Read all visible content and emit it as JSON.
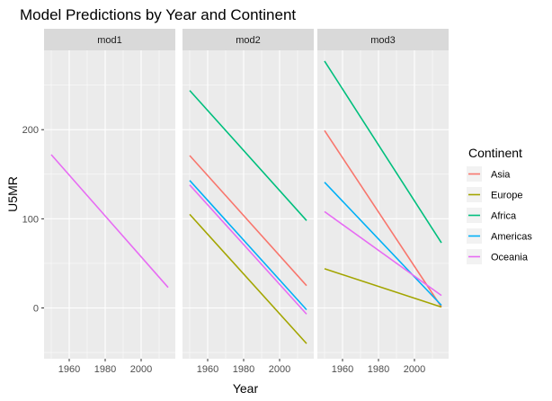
{
  "chart_data": {
    "type": "line",
    "title": "Model Predictions by Year and Continent",
    "xlabel": "Year",
    "ylabel": "U5MR",
    "xlim": [
      1946,
      2019
    ],
    "ylim": [
      -57,
      289
    ],
    "x_ticks": [
      1960,
      1980,
      2000
    ],
    "y_ticks": [
      0,
      100,
      200
    ],
    "legend": {
      "title": "Continent",
      "position": "right",
      "entries": [
        "Asia",
        "Europe",
        "Africa",
        "Americas",
        "Oceania"
      ]
    },
    "colors": {
      "Asia": "#F8766D",
      "Europe": "#A3A500",
      "Africa": "#00BF7D",
      "Americas": "#00B0F6",
      "Oceania": "#E76BF3"
    },
    "panels": [
      {
        "name": "mod1",
        "series": [
          {
            "name": "Oceania",
            "x": [
              1950,
              2015
            ],
            "y": [
              172,
              23
            ]
          }
        ]
      },
      {
        "name": "mod2",
        "series": [
          {
            "name": "Asia",
            "x": [
              1950,
              2015
            ],
            "y": [
              171,
              25
            ]
          },
          {
            "name": "Europe",
            "x": [
              1950,
              2015
            ],
            "y": [
              105,
              -40
            ]
          },
          {
            "name": "Africa",
            "x": [
              1950,
              2015
            ],
            "y": [
              244,
              98
            ]
          },
          {
            "name": "Americas",
            "x": [
              1950,
              2015
            ],
            "y": [
              143,
              -2
            ]
          },
          {
            "name": "Oceania",
            "x": [
              1950,
              2015
            ],
            "y": [
              138,
              -7
            ]
          }
        ]
      },
      {
        "name": "mod3",
        "series": [
          {
            "name": "Asia",
            "x": [
              1950,
              2015
            ],
            "y": [
              199,
              1
            ]
          },
          {
            "name": "Europe",
            "x": [
              1950,
              2015
            ],
            "y": [
              44,
              1
            ]
          },
          {
            "name": "Africa",
            "x": [
              1950,
              2015
            ],
            "y": [
              277,
              73
            ]
          },
          {
            "name": "Americas",
            "x": [
              1950,
              2015
            ],
            "y": [
              141,
              3
            ]
          },
          {
            "name": "Oceania",
            "x": [
              1950,
              2015
            ],
            "y": [
              108,
              14
            ]
          }
        ]
      }
    ]
  }
}
